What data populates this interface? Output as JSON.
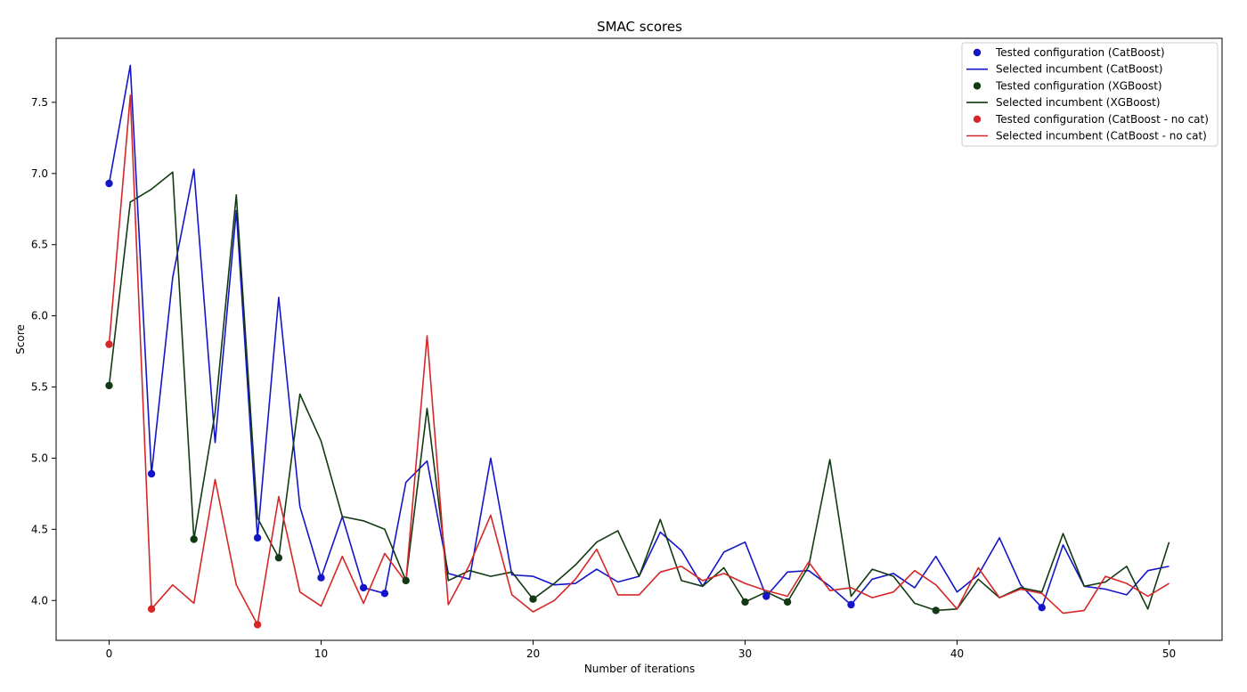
{
  "chart_data": {
    "type": "line",
    "title": "SMAC scores",
    "xlabel": "Number of iterations",
    "ylabel": "Score",
    "xlim": [
      -2.5,
      52.5
    ],
    "ylim": [
      3.72,
      7.95
    ],
    "xticks": [
      0,
      10,
      20,
      30,
      40,
      50
    ],
    "xtick_labels": [
      "0",
      "10",
      "20",
      "30",
      "40",
      "50"
    ],
    "yticks": [
      4.0,
      4.5,
      5.0,
      5.5,
      6.0,
      6.5,
      7.0,
      7.5
    ],
    "ytick_labels": [
      "4.0",
      "4.5",
      "5.0",
      "5.5",
      "6.0",
      "6.5",
      "7.0",
      "7.5"
    ],
    "grid": false,
    "legend_position": "top-right",
    "series": [
      {
        "key": "catboost",
        "color": "#1515c8",
        "line_label": "Selected incumbent (CatBoost)",
        "point_label": "Tested configuration (CatBoost)",
        "line": [
          [
            0,
            6.93
          ],
          [
            1,
            7.76
          ],
          [
            2,
            4.89
          ],
          [
            3,
            6.27
          ],
          [
            4,
            7.03
          ],
          [
            5,
            5.11
          ],
          [
            6,
            6.74
          ],
          [
            7,
            4.44
          ],
          [
            8,
            6.13
          ],
          [
            9,
            4.66
          ],
          [
            10,
            4.16
          ],
          [
            11,
            4.59
          ],
          [
            12,
            4.09
          ],
          [
            13,
            4.05
          ],
          [
            14,
            4.83
          ],
          [
            15,
            4.98
          ],
          [
            16,
            4.19
          ],
          [
            17,
            4.15
          ],
          [
            18,
            5.0
          ],
          [
            19,
            4.18
          ],
          [
            20,
            4.17
          ],
          [
            21,
            4.11
          ],
          [
            22,
            4.12
          ],
          [
            23,
            4.22
          ],
          [
            24,
            4.13
          ],
          [
            25,
            4.17
          ],
          [
            26,
            4.48
          ],
          [
            27,
            4.35
          ],
          [
            28,
            4.1
          ],
          [
            29,
            4.34
          ],
          [
            30,
            4.41
          ],
          [
            31,
            4.03
          ],
          [
            32,
            4.2
          ],
          [
            33,
            4.21
          ],
          [
            34,
            4.1
          ],
          [
            35,
            3.97
          ],
          [
            36,
            4.15
          ],
          [
            37,
            4.19
          ],
          [
            38,
            4.09
          ],
          [
            39,
            4.31
          ],
          [
            40,
            4.06
          ],
          [
            41,
            4.18
          ],
          [
            42,
            4.44
          ],
          [
            43,
            4.11
          ],
          [
            44,
            3.95
          ],
          [
            45,
            4.39
          ],
          [
            46,
            4.1
          ],
          [
            47,
            4.08
          ],
          [
            48,
            4.04
          ],
          [
            49,
            4.21
          ],
          [
            50,
            4.24
          ]
        ],
        "points": [
          [
            0,
            6.93
          ],
          [
            2,
            4.89
          ],
          [
            7,
            4.44
          ],
          [
            10,
            4.16
          ],
          [
            12,
            4.09
          ],
          [
            13,
            4.05
          ],
          [
            31,
            4.03
          ],
          [
            35,
            3.97
          ],
          [
            44,
            3.95
          ]
        ]
      },
      {
        "key": "xgboost",
        "color": "#123a12",
        "line_label": "Selected incumbent (XGBoost)",
        "point_label": "Tested configuration (XGBoost)",
        "line": [
          [
            0,
            5.51
          ],
          [
            1,
            6.8
          ],
          [
            2,
            6.89
          ],
          [
            3,
            7.01
          ],
          [
            4,
            4.43
          ],
          [
            5,
            5.32
          ],
          [
            6,
            6.85
          ],
          [
            7,
            4.58
          ],
          [
            8,
            4.3
          ],
          [
            9,
            5.45
          ],
          [
            10,
            5.12
          ],
          [
            11,
            4.59
          ],
          [
            12,
            4.56
          ],
          [
            13,
            4.5
          ],
          [
            14,
            4.14
          ],
          [
            15,
            5.35
          ],
          [
            16,
            4.14
          ],
          [
            17,
            4.21
          ],
          [
            18,
            4.17
          ],
          [
            19,
            4.2
          ],
          [
            20,
            4.01
          ],
          [
            21,
            4.12
          ],
          [
            22,
            4.25
          ],
          [
            23,
            4.41
          ],
          [
            24,
            4.49
          ],
          [
            25,
            4.17
          ],
          [
            26,
            4.57
          ],
          [
            27,
            4.14
          ],
          [
            28,
            4.1
          ],
          [
            29,
            4.23
          ],
          [
            30,
            3.99
          ],
          [
            31,
            4.06
          ],
          [
            32,
            3.99
          ],
          [
            33,
            4.24
          ],
          [
            34,
            4.99
          ],
          [
            35,
            4.03
          ],
          [
            36,
            4.22
          ],
          [
            37,
            4.17
          ],
          [
            38,
            3.98
          ],
          [
            39,
            3.93
          ],
          [
            40,
            3.94
          ],
          [
            41,
            4.15
          ],
          [
            42,
            4.02
          ],
          [
            43,
            4.09
          ],
          [
            44,
            4.06
          ],
          [
            45,
            4.47
          ],
          [
            46,
            4.1
          ],
          [
            47,
            4.13
          ],
          [
            48,
            4.24
          ],
          [
            49,
            3.94
          ],
          [
            50,
            4.41
          ]
        ],
        "points": [
          [
            0,
            5.51
          ],
          [
            4,
            4.43
          ],
          [
            8,
            4.3
          ],
          [
            14,
            4.14
          ],
          [
            20,
            4.01
          ],
          [
            30,
            3.99
          ],
          [
            32,
            3.99
          ],
          [
            39,
            3.93
          ]
        ]
      },
      {
        "key": "catboost_nocat",
        "color": "#d62728",
        "line_label": "Selected incumbent (CatBoost - no cat)",
        "point_label": "Tested configuration (CatBoost - no cat)",
        "line": [
          [
            0,
            5.8
          ],
          [
            1,
            7.55
          ],
          [
            2,
            3.94
          ],
          [
            3,
            4.11
          ],
          [
            4,
            3.98
          ],
          [
            5,
            4.85
          ],
          [
            6,
            4.11
          ],
          [
            7,
            3.83
          ],
          [
            8,
            4.73
          ],
          [
            9,
            4.06
          ],
          [
            10,
            3.96
          ],
          [
            11,
            4.31
          ],
          [
            12,
            3.98
          ],
          [
            13,
            4.33
          ],
          [
            14,
            4.13
          ],
          [
            15,
            5.86
          ],
          [
            16,
            3.97
          ],
          [
            17,
            4.25
          ],
          [
            18,
            4.6
          ],
          [
            19,
            4.04
          ],
          [
            20,
            3.92
          ],
          [
            21,
            4.0
          ],
          [
            22,
            4.15
          ],
          [
            23,
            4.36
          ],
          [
            24,
            4.04
          ],
          [
            25,
            4.04
          ],
          [
            26,
            4.2
          ],
          [
            27,
            4.24
          ],
          [
            28,
            4.14
          ],
          [
            29,
            4.19
          ],
          [
            30,
            4.12
          ],
          [
            31,
            4.07
          ],
          [
            32,
            4.03
          ],
          [
            33,
            4.27
          ],
          [
            34,
            4.07
          ],
          [
            35,
            4.09
          ],
          [
            36,
            4.02
          ],
          [
            37,
            4.06
          ],
          [
            38,
            4.21
          ],
          [
            39,
            4.11
          ],
          [
            40,
            3.94
          ],
          [
            41,
            4.23
          ],
          [
            42,
            4.02
          ],
          [
            43,
            4.08
          ],
          [
            44,
            4.05
          ],
          [
            45,
            3.91
          ],
          [
            46,
            3.93
          ],
          [
            47,
            4.17
          ],
          [
            48,
            4.12
          ],
          [
            49,
            4.03
          ],
          [
            50,
            4.12
          ]
        ],
        "points": [
          [
            0,
            5.8
          ],
          [
            2,
            3.94
          ],
          [
            7,
            3.83
          ]
        ]
      }
    ]
  }
}
